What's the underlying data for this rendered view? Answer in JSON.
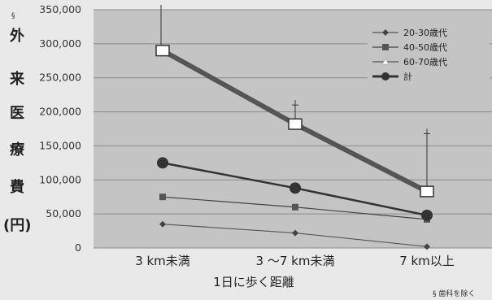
{
  "chart_data": {
    "type": "line",
    "categories": [
      "3 km未満",
      "3 〜7 km未満",
      "7 km以上"
    ],
    "ylabel_chars": [
      "外",
      "来",
      "医",
      "療",
      "費"
    ],
    "yunit": "(円)",
    "ylabel_mark": "§",
    "xlabel": "1日に歩く距離",
    "footnote": "§ 歯科を除く",
    "ylim": [
      0,
      350000
    ],
    "yticks": [
      0,
      50000,
      100000,
      150000,
      200000,
      250000,
      300000,
      350000
    ],
    "ytick_labels": [
      "0",
      "50,000",
      "100,000",
      "150,000",
      "200,000",
      "250,000",
      "300,000",
      "350,000"
    ],
    "grid": true,
    "legend_position": "top-right",
    "series": [
      {
        "name": "20-30歳代",
        "values": [
          35000,
          22000,
          2000
        ],
        "marker": "diamond",
        "color": "#555555"
      },
      {
        "name": "40-50歳代",
        "values": [
          75000,
          60000,
          42000
        ],
        "marker": "square",
        "color": "#444444"
      },
      {
        "name": "60-70歳代",
        "values": [
          290000,
          182000,
          83000
        ],
        "marker": "triangle",
        "color": "#555555"
      },
      {
        "name": "計",
        "values": [
          125000,
          88000,
          48000
        ],
        "marker": "circle",
        "color": "#333333"
      }
    ],
    "error_bar_tops": [
      350000,
      210000,
      168000
    ]
  }
}
